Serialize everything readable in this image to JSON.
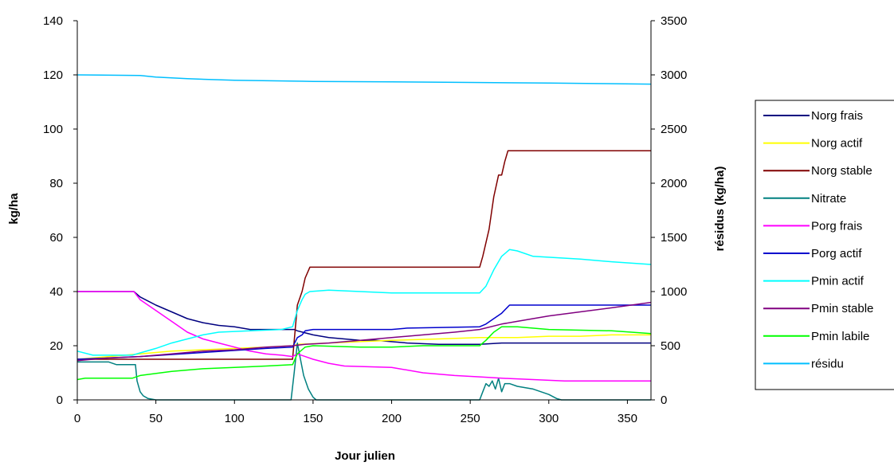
{
  "chart_data": {
    "type": "line",
    "title": "",
    "xlabel": "Jour julien",
    "ylabel_left": "kg/ha",
    "ylabel_right": "résidus (kg/ha)",
    "xlim": [
      0,
      365
    ],
    "ylim_left": [
      0,
      140
    ],
    "ylim_right": [
      0,
      3500
    ],
    "x_ticks": [
      0,
      50,
      100,
      150,
      200,
      250,
      300,
      350
    ],
    "y_left_ticks": [
      0,
      20,
      40,
      60,
      80,
      100,
      120,
      140
    ],
    "y_right_ticks": [
      0,
      500,
      1000,
      1500,
      2000,
      2500,
      3000,
      3500
    ],
    "grid": false,
    "legend_position": "right",
    "series": [
      {
        "name": "Norg frais",
        "color": "#000080",
        "axis": "left",
        "points": [
          [
            0,
            40
          ],
          [
            36,
            40
          ],
          [
            40,
            38
          ],
          [
            50,
            35
          ],
          [
            60,
            32.5
          ],
          [
            70,
            30
          ],
          [
            80,
            28.5
          ],
          [
            90,
            27.5
          ],
          [
            100,
            27
          ],
          [
            110,
            26
          ],
          [
            130,
            26
          ],
          [
            138,
            26
          ],
          [
            140,
            25.5
          ],
          [
            150,
            24
          ],
          [
            160,
            23
          ],
          [
            170,
            22.5
          ],
          [
            180,
            22
          ],
          [
            190,
            22
          ],
          [
            200,
            21.5
          ],
          [
            210,
            21
          ],
          [
            230,
            20.5
          ],
          [
            256,
            20.5
          ],
          [
            270,
            21
          ],
          [
            300,
            21
          ],
          [
            365,
            21
          ]
        ]
      },
      {
        "name": "Norg actif",
        "color": "#FFFF00",
        "axis": "left",
        "points": [
          [
            0,
            15
          ],
          [
            20,
            16
          ],
          [
            40,
            17
          ],
          [
            60,
            18
          ],
          [
            80,
            18.5
          ],
          [
            100,
            19
          ],
          [
            120,
            19.5
          ],
          [
            137,
            20
          ],
          [
            140,
            20.5
          ],
          [
            160,
            21
          ],
          [
            180,
            21.5
          ],
          [
            200,
            22
          ],
          [
            230,
            22.5
          ],
          [
            256,
            23
          ],
          [
            280,
            23
          ],
          [
            300,
            23.5
          ],
          [
            320,
            23.5
          ],
          [
            340,
            24
          ],
          [
            365,
            24
          ]
        ]
      },
      {
        "name": "Norg stable",
        "color": "#800000",
        "axis": "left",
        "points": [
          [
            0,
            15
          ],
          [
            137,
            15
          ],
          [
            140,
            35
          ],
          [
            143,
            40
          ],
          [
            145,
            45
          ],
          [
            148,
            49
          ],
          [
            256,
            49
          ],
          [
            258,
            53
          ],
          [
            262,
            63
          ],
          [
            265,
            75
          ],
          [
            268,
            83
          ],
          [
            270,
            83
          ],
          [
            272,
            88
          ],
          [
            274,
            92
          ],
          [
            365,
            92
          ]
        ]
      },
      {
        "name": "Nitrate",
        "color": "#008080",
        "axis": "left",
        "points": [
          [
            0,
            14
          ],
          [
            20,
            14
          ],
          [
            25,
            13
          ],
          [
            37,
            13
          ],
          [
            38,
            7
          ],
          [
            40,
            3
          ],
          [
            42,
            1.5
          ],
          [
            45,
            0.5
          ],
          [
            50,
            0
          ],
          [
            136,
            0
          ],
          [
            138,
            10
          ],
          [
            140,
            21
          ],
          [
            142,
            15
          ],
          [
            144,
            9
          ],
          [
            147,
            4
          ],
          [
            150,
            1
          ],
          [
            152,
            0
          ],
          [
            256,
            0
          ],
          [
            258,
            3
          ],
          [
            260,
            6
          ],
          [
            262,
            5
          ],
          [
            264,
            7
          ],
          [
            266,
            4
          ],
          [
            268,
            8
          ],
          [
            270,
            3
          ],
          [
            272,
            6
          ],
          [
            275,
            6
          ],
          [
            280,
            5
          ],
          [
            290,
            4
          ],
          [
            300,
            2
          ],
          [
            305,
            0.5
          ],
          [
            308,
            0
          ],
          [
            365,
            0
          ]
        ]
      },
      {
        "name": "Porg frais",
        "color": "#FF00FF",
        "axis": "left",
        "points": [
          [
            0,
            40
          ],
          [
            36,
            40
          ],
          [
            40,
            37
          ],
          [
            50,
            33
          ],
          [
            60,
            29
          ],
          [
            70,
            25
          ],
          [
            80,
            22.5
          ],
          [
            90,
            21
          ],
          [
            100,
            19.5
          ],
          [
            110,
            18
          ],
          [
            120,
            17
          ],
          [
            130,
            16.5
          ],
          [
            137,
            16
          ],
          [
            140,
            17
          ],
          [
            150,
            15
          ],
          [
            160,
            13.5
          ],
          [
            170,
            12.5
          ],
          [
            200,
            12
          ],
          [
            220,
            10
          ],
          [
            240,
            9
          ],
          [
            256,
            8.5
          ],
          [
            270,
            8
          ],
          [
            290,
            7.5
          ],
          [
            310,
            7
          ],
          [
            340,
            7
          ],
          [
            365,
            7
          ]
        ]
      },
      {
        "name": "Porg actif",
        "color": "#0000CD",
        "axis": "left",
        "points": [
          [
            0,
            15
          ],
          [
            40,
            16
          ],
          [
            80,
            17.5
          ],
          [
            120,
            19
          ],
          [
            137,
            19.5
          ],
          [
            140,
            23
          ],
          [
            143,
            24
          ],
          [
            145,
            25.5
          ],
          [
            150,
            26
          ],
          [
            200,
            26
          ],
          [
            210,
            26.5
          ],
          [
            256,
            27
          ],
          [
            260,
            28
          ],
          [
            265,
            30
          ],
          [
            270,
            32
          ],
          [
            275,
            35
          ],
          [
            300,
            35
          ],
          [
            340,
            35
          ],
          [
            365,
            35
          ]
        ]
      },
      {
        "name": "Pmin actif",
        "color": "#00FFFF",
        "axis": "left",
        "points": [
          [
            0,
            18
          ],
          [
            10,
            16.5
          ],
          [
            35,
            16.5
          ],
          [
            50,
            19
          ],
          [
            60,
            21
          ],
          [
            70,
            22.5
          ],
          [
            80,
            24
          ],
          [
            90,
            25
          ],
          [
            110,
            25.5
          ],
          [
            130,
            26
          ],
          [
            137,
            27
          ],
          [
            140,
            33
          ],
          [
            143,
            37
          ],
          [
            145,
            39
          ],
          [
            148,
            40
          ],
          [
            160,
            40.5
          ],
          [
            180,
            40
          ],
          [
            200,
            39.5
          ],
          [
            256,
            39.5
          ],
          [
            260,
            42
          ],
          [
            265,
            48
          ],
          [
            270,
            53
          ],
          [
            275,
            55.5
          ],
          [
            280,
            55
          ],
          [
            290,
            53
          ],
          [
            320,
            52
          ],
          [
            340,
            51
          ],
          [
            365,
            50
          ]
        ]
      },
      {
        "name": "Pmin stable",
        "color": "#800080",
        "axis": "left",
        "points": [
          [
            0,
            14.5
          ],
          [
            20,
            15.5
          ],
          [
            40,
            16
          ],
          [
            60,
            17
          ],
          [
            80,
            18
          ],
          [
            100,
            18.5
          ],
          [
            120,
            19.5
          ],
          [
            137,
            20
          ],
          [
            145,
            20.5
          ],
          [
            160,
            21
          ],
          [
            180,
            22
          ],
          [
            200,
            23
          ],
          [
            220,
            24
          ],
          [
            240,
            25
          ],
          [
            256,
            26
          ],
          [
            270,
            28
          ],
          [
            280,
            29
          ],
          [
            300,
            31
          ],
          [
            320,
            32.5
          ],
          [
            340,
            34
          ],
          [
            365,
            36
          ]
        ]
      },
      {
        "name": "Pmin labile",
        "color": "#00FF00",
        "axis": "left",
        "points": [
          [
            0,
            7.5
          ],
          [
            5,
            8
          ],
          [
            35,
            8
          ],
          [
            40,
            9
          ],
          [
            60,
            10.5
          ],
          [
            80,
            11.5
          ],
          [
            100,
            12
          ],
          [
            120,
            12.5
          ],
          [
            137,
            13
          ],
          [
            140,
            17
          ],
          [
            145,
            19.5
          ],
          [
            150,
            20
          ],
          [
            180,
            19.5
          ],
          [
            200,
            19.5
          ],
          [
            220,
            20
          ],
          [
            256,
            20
          ],
          [
            260,
            22
          ],
          [
            265,
            25
          ],
          [
            270,
            27
          ],
          [
            280,
            27
          ],
          [
            300,
            26
          ],
          [
            340,
            25.5
          ],
          [
            365,
            24.5
          ]
        ]
      },
      {
        "name": "résidu",
        "color": "#00BFFF",
        "axis": "right",
        "points": [
          [
            0,
            3000
          ],
          [
            40,
            2995
          ],
          [
            50,
            2980
          ],
          [
            70,
            2965
          ],
          [
            100,
            2950
          ],
          [
            150,
            2940
          ],
          [
            200,
            2935
          ],
          [
            250,
            2930
          ],
          [
            300,
            2925
          ],
          [
            330,
            2920
          ],
          [
            365,
            2915
          ]
        ]
      }
    ]
  }
}
